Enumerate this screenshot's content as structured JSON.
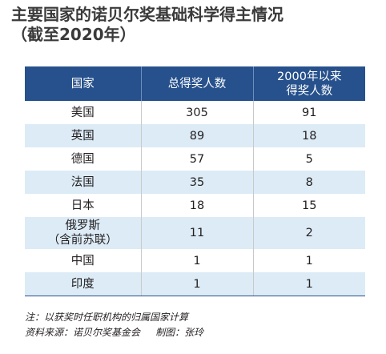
{
  "title": {
    "line1": "主要国家的诺贝尔奖基础科学得主情况",
    "line2": "（截至2020年）"
  },
  "table": {
    "headers": {
      "country": "国家",
      "total": "总得奖人数",
      "since2000_line1": "2000年以来",
      "since2000_line2": "得奖人数"
    },
    "rows": [
      {
        "country": "美国",
        "total": "305",
        "since2000": "91"
      },
      {
        "country": "英国",
        "total": "89",
        "since2000": "18"
      },
      {
        "country": "德国",
        "total": "57",
        "since2000": "5"
      },
      {
        "country": "法国",
        "total": "35",
        "since2000": "8"
      },
      {
        "country": "日本",
        "total": "18",
        "since2000": "15"
      },
      {
        "country_line1": "俄罗斯",
        "country_line2": "（含前苏联）",
        "total": "11",
        "since2000": "2"
      },
      {
        "country": "中国",
        "total": "1",
        "since2000": "1"
      },
      {
        "country": "印度",
        "total": "1",
        "since2000": "1"
      }
    ]
  },
  "notes": {
    "note": "注：以获奖时任职机构的归属国家计算",
    "source": "资料来源：诺贝尔奖基金会     制图：张玲"
  },
  "colors": {
    "header_bg": "#27518c",
    "alt_row_bg": "#dcebf6",
    "title_text": "#3a3a3a"
  }
}
